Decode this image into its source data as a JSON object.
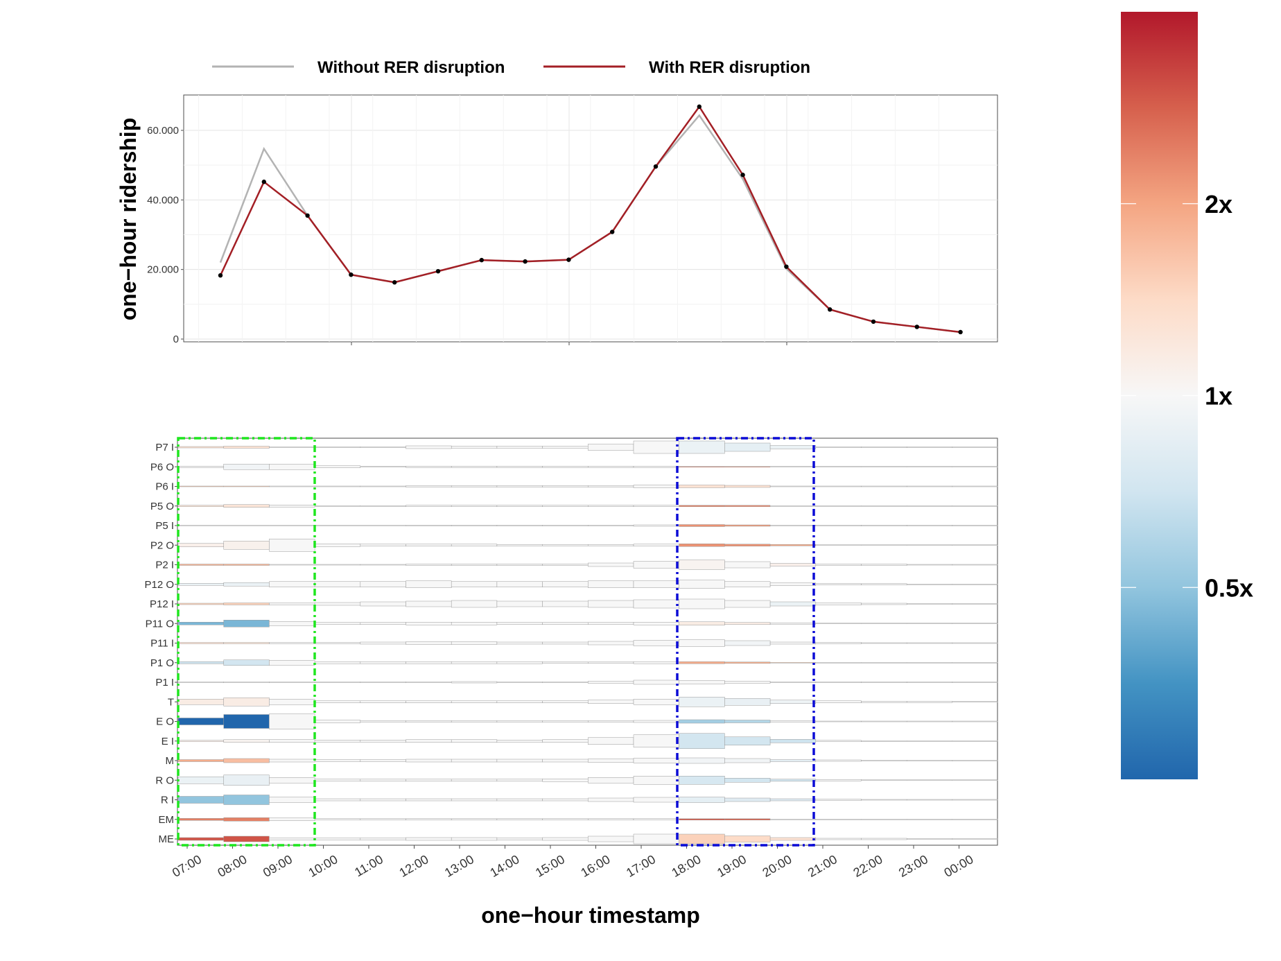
{
  "legend": {
    "items": [
      {
        "label": "Without RER disruption",
        "color": "#b3b3b3"
      },
      {
        "label": "With RER disruption",
        "color": "#a31f25"
      }
    ]
  },
  "chart_data": [
    {
      "type": "line",
      "ylabel": "one−hour ridership",
      "ylim": [
        0,
        70000
      ],
      "y_ticks": [
        0,
        20000,
        40000,
        60000
      ],
      "y_tick_labels": [
        "0",
        "20.000",
        "40.000",
        "60.000"
      ],
      "grid": true,
      "legend_position": "top",
      "x": [
        "07:00",
        "08:00",
        "09:00",
        "10:00",
        "11:00",
        "12:00",
        "13:00",
        "14:00",
        "15:00",
        "16:00",
        "17:00",
        "18:00",
        "19:00",
        "20:00",
        "21:00",
        "22:00",
        "23:00",
        "00:00"
      ],
      "series": [
        {
          "name": "Without RER disruption",
          "color": "#b3b3b3",
          "values": [
            22000,
            54700,
            35500,
            18500,
            16300,
            19500,
            22700,
            22300,
            22800,
            30800,
            49600,
            64300,
            46000,
            20200,
            8500,
            5000,
            3500,
            2000
          ]
        },
        {
          "name": "With RER disruption",
          "color": "#a31f25",
          "values": [
            18300,
            45200,
            35500,
            18500,
            16300,
            19500,
            22700,
            22300,
            22800,
            30800,
            49600,
            66800,
            47200,
            20800,
            8500,
            5000,
            3500,
            2000
          ]
        }
      ]
    },
    {
      "type": "heatmap",
      "xlabel": "one−hour timestamp",
      "x_tick_labels": [
        "07:00",
        "08:00",
        "09:00",
        "10:00",
        "11:00",
        "12:00",
        "13:00",
        "14:00",
        "15:00",
        "16:00",
        "17:00",
        "18:00",
        "19:00",
        "20:00",
        "21:00",
        "22:00",
        "23:00",
        "00:00"
      ],
      "rows": [
        "P7 I",
        "P6 O",
        "P6 I",
        "P5 O",
        "P5 I",
        "P2 O",
        "P2 I",
        "P12 O",
        "P12 I",
        "P11 O",
        "P11 I",
        "P1 O",
        "P1 I",
        "T",
        "E O",
        "E I",
        "M",
        "R O",
        "R I",
        "EM",
        "ME"
      ],
      "ratio": [
        [
          1.3,
          1.3,
          1.0,
          1.0,
          1.0,
          1.0,
          1.0,
          1.0,
          1.0,
          1.0,
          1.0,
          0.9,
          0.85,
          0.9,
          1.0,
          1.0,
          1.0,
          1.0
        ],
        [
          1.0,
          0.95,
          1.0,
          1.0,
          1.0,
          1.0,
          1.0,
          1.0,
          1.0,
          1.0,
          1.0,
          2.6,
          2.4,
          1.0,
          1.0,
          1.0,
          1.0,
          1.0
        ],
        [
          1.6,
          1.6,
          1.0,
          1.0,
          1.0,
          1.0,
          1.0,
          1.0,
          1.0,
          1.0,
          1.0,
          1.3,
          1.3,
          1.0,
          1.0,
          1.0,
          1.0,
          1.0
        ],
        [
          1.25,
          1.25,
          1.0,
          1.0,
          1.0,
          1.0,
          1.0,
          1.0,
          1.0,
          1.0,
          1.0,
          2.4,
          2.3,
          1.0,
          1.0,
          1.0,
          1.0,
          1.0
        ],
        [
          1.3,
          1.3,
          1.0,
          1.0,
          1.0,
          1.0,
          1.0,
          1.0,
          1.0,
          1.0,
          1.0,
          2.2,
          2.1,
          1.0,
          1.0,
          1.0,
          1.0,
          1.0
        ],
        [
          1.1,
          1.08,
          1.0,
          1.0,
          1.0,
          1.0,
          1.0,
          1.0,
          1.0,
          1.0,
          1.0,
          2.2,
          2.2,
          2.0,
          1.0,
          1.0,
          1.0,
          1.0
        ],
        [
          1.8,
          1.8,
          1.0,
          1.0,
          1.0,
          1.0,
          1.0,
          1.0,
          1.0,
          1.0,
          1.0,
          1.05,
          1.0,
          1.1,
          1.0,
          1.0,
          1.0,
          1.0
        ],
        [
          0.9,
          0.9,
          1.0,
          1.0,
          1.0,
          1.0,
          1.0,
          1.0,
          1.0,
          1.0,
          1.0,
          1.0,
          1.0,
          1.0,
          1.0,
          1.0,
          1.0,
          1.0
        ],
        [
          1.5,
          1.5,
          1.0,
          1.0,
          1.0,
          1.0,
          1.0,
          1.0,
          1.0,
          1.0,
          1.0,
          1.0,
          1.0,
          0.9,
          1.0,
          1.0,
          1.0,
          1.0
        ],
        [
          0.45,
          0.45,
          1.0,
          1.0,
          1.0,
          1.0,
          1.0,
          1.0,
          1.0,
          1.0,
          1.0,
          1.15,
          1.15,
          1.0,
          1.0,
          1.0,
          1.0,
          1.0
        ],
        [
          1.3,
          1.25,
          1.0,
          1.0,
          1.0,
          1.0,
          1.0,
          1.0,
          1.0,
          1.0,
          1.0,
          1.0,
          0.95,
          1.0,
          1.0,
          1.0,
          1.0,
          1.0
        ],
        [
          0.7,
          0.72,
          1.0,
          1.0,
          1.0,
          1.0,
          1.0,
          1.0,
          1.0,
          1.0,
          1.0,
          1.9,
          1.9,
          1.5,
          1.0,
          1.0,
          1.0,
          1.0
        ],
        [
          1.0,
          1.0,
          1.0,
          1.0,
          1.0,
          1.0,
          1.0,
          1.0,
          1.0,
          1.0,
          1.0,
          1.0,
          1.0,
          1.0,
          1.0,
          1.0,
          1.0,
          1.0
        ],
        [
          1.15,
          1.15,
          1.0,
          1.0,
          1.0,
          1.0,
          1.0,
          1.0,
          1.0,
          1.0,
          1.0,
          0.9,
          0.88,
          0.92,
          1.0,
          1.0,
          1.0,
          1.0
        ],
        [
          0.1,
          0.1,
          1.0,
          1.0,
          1.0,
          1.0,
          1.0,
          1.0,
          1.0,
          1.0,
          1.0,
          0.55,
          0.6,
          1.0,
          1.0,
          1.0,
          1.0,
          1.0
        ],
        [
          1.1,
          1.05,
          1.0,
          1.0,
          1.0,
          1.0,
          1.0,
          1.0,
          1.0,
          1.0,
          1.0,
          0.72,
          0.72,
          0.7,
          1.0,
          1.0,
          1.0,
          1.0
        ],
        [
          1.9,
          1.7,
          1.0,
          1.0,
          1.0,
          1.0,
          1.0,
          1.0,
          1.0,
          1.0,
          1.0,
          0.95,
          0.95,
          0.85,
          1.0,
          1.0,
          1.0,
          1.0
        ],
        [
          0.9,
          0.88,
          1.0,
          1.0,
          1.0,
          1.0,
          1.0,
          1.0,
          1.0,
          1.0,
          1.0,
          0.75,
          0.72,
          0.72,
          1.0,
          1.0,
          1.0,
          1.0
        ],
        [
          0.5,
          0.5,
          1.0,
          1.0,
          1.0,
          1.0,
          1.0,
          1.0,
          1.0,
          1.0,
          1.0,
          0.85,
          0.8,
          0.8,
          1.0,
          1.0,
          1.0,
          1.0
        ],
        [
          2.4,
          2.4,
          1.0,
          1.0,
          1.0,
          1.0,
          1.0,
          1.0,
          1.0,
          1.0,
          1.0,
          2.9,
          2.8,
          1.0,
          1.0,
          1.0,
          1.0,
          1.0
        ],
        [
          3.0,
          3.0,
          1.0,
          1.0,
          1.0,
          1.0,
          1.0,
          1.0,
          1.0,
          1.0,
          1.0,
          1.5,
          1.4,
          1.3,
          1.0,
          1.0,
          1.0,
          1.0
        ]
      ],
      "size": [
        [
          2,
          3,
          1,
          1,
          1,
          4,
          3,
          3,
          3,
          9,
          18,
          18,
          12,
          5,
          1,
          1,
          1,
          1
        ],
        [
          2,
          8,
          8,
          3,
          1,
          2,
          2,
          2,
          2,
          2,
          2,
          1,
          1,
          1,
          1,
          1,
          1,
          1
        ],
        [
          1,
          1,
          1,
          1,
          1,
          2,
          2,
          2,
          2,
          2,
          4,
          4,
          3,
          1,
          1,
          1,
          1,
          1
        ],
        [
          2,
          4,
          3,
          1,
          1,
          2,
          2,
          2,
          2,
          2,
          2,
          2,
          2,
          1,
          1,
          1,
          1,
          1
        ],
        [
          0.5,
          0.5,
          0.5,
          0.5,
          0.5,
          1,
          1,
          1,
          1,
          1,
          2,
          3,
          2,
          1,
          1,
          1,
          1,
          1
        ],
        [
          5,
          12,
          18,
          4,
          3,
          3,
          3,
          2,
          2,
          2,
          3,
          4,
          3,
          2,
          1,
          1,
          1,
          1
        ],
        [
          2,
          2,
          1,
          1,
          1,
          2,
          2,
          2,
          2,
          5,
          10,
          14,
          9,
          4,
          2,
          2,
          1,
          1
        ],
        [
          3,
          5,
          8,
          8,
          8,
          10,
          8,
          8,
          8,
          10,
          10,
          12,
          8,
          4,
          2,
          2,
          1,
          1
        ],
        [
          2,
          3,
          3,
          4,
          6,
          8,
          10,
          8,
          8,
          10,
          12,
          14,
          10,
          6,
          3,
          2,
          1,
          1
        ],
        [
          4,
          10,
          6,
          3,
          3,
          4,
          4,
          3,
          3,
          3,
          4,
          5,
          3,
          2,
          1,
          1,
          1,
          1
        ],
        [
          2,
          2,
          2,
          2,
          3,
          4,
          4,
          3,
          3,
          5,
          8,
          10,
          7,
          3,
          2,
          1,
          1,
          1
        ],
        [
          3,
          8,
          7,
          3,
          3,
          3,
          3,
          3,
          2,
          2,
          3,
          3,
          2,
          1,
          1,
          1,
          1,
          1
        ],
        [
          1,
          1,
          1,
          1,
          1,
          1,
          2,
          1,
          1,
          3,
          6,
          5,
          3,
          1,
          1,
          1,
          1,
          1
        ],
        [
          8,
          12,
          8,
          3,
          3,
          3,
          3,
          3,
          3,
          5,
          8,
          14,
          10,
          5,
          3,
          2,
          2,
          1
        ],
        [
          10,
          20,
          22,
          4,
          2,
          2,
          2,
          2,
          2,
          2,
          3,
          5,
          4,
          2,
          1,
          1,
          1,
          1
        ],
        [
          2,
          4,
          4,
          3,
          3,
          4,
          4,
          3,
          4,
          10,
          18,
          22,
          12,
          5,
          2,
          1,
          1,
          1
        ],
        [
          3,
          6,
          4,
          3,
          3,
          4,
          4,
          4,
          4,
          5,
          7,
          8,
          6,
          3,
          2,
          1,
          1,
          1
        ],
        [
          10,
          15,
          8,
          3,
          3,
          3,
          3,
          3,
          4,
          8,
          12,
          12,
          6,
          3,
          2,
          1,
          1,
          1
        ],
        [
          10,
          14,
          8,
          3,
          3,
          3,
          3,
          3,
          3,
          5,
          7,
          8,
          5,
          3,
          2,
          1,
          1,
          1
        ],
        [
          3,
          5,
          4,
          2,
          2,
          2,
          2,
          2,
          2,
          2,
          2,
          2,
          2,
          1,
          1,
          1,
          1,
          1
        ],
        [
          4,
          8,
          3,
          3,
          3,
          4,
          4,
          3,
          4,
          8,
          14,
          14,
          9,
          4,
          2,
          2,
          1,
          1
        ]
      ],
      "highlights": [
        {
          "from": "07:00",
          "to": "09:00",
          "color": "#1fe61f"
        },
        {
          "from": "18:00",
          "to": "20:00",
          "color": "#0b0bd6"
        }
      ]
    }
  ],
  "colorbar": {
    "labels": [
      {
        "text": "2x",
        "value": 2
      },
      {
        "text": "1x",
        "value": 1
      },
      {
        "text": "0.5x",
        "value": 0.5
      }
    ],
    "colors": [
      "#2166ac",
      "#4393c3",
      "#92c5de",
      "#d1e5f0",
      "#f7f7f7",
      "#fddbc7",
      "#f4a582",
      "#d6604d",
      "#b2182b"
    ]
  }
}
